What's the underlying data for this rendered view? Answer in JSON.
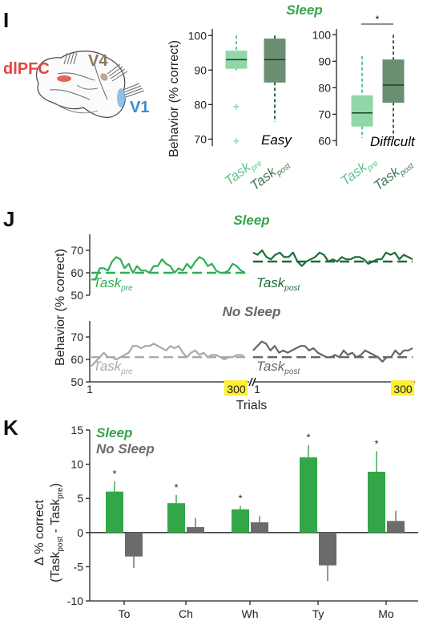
{
  "colors": {
    "sleep_light": "#5cc58a",
    "sleep_dark": "#3e7a52",
    "sleep": "#33a64a",
    "sleep_trace_pre": "#2fae57",
    "sleep_trace_post": "#1d6b3a",
    "nosleep_pre": "#a9a9a9",
    "nosleep_post": "#666666",
    "nosleep_bar": "#6b6b6b",
    "highlight": "#ffee33",
    "dlpfc": "#e0483c",
    "v4": "#8a7560",
    "v1": "#3a8fcc"
  },
  "panel_I": {
    "letter": "I",
    "brain": {
      "dlpfc": "dlPFC",
      "v4": "V4",
      "v1": "V1",
      "icon": "macaque-brain-icon"
    },
    "title": "Sleep",
    "ylabel": "Behavior  (% correct)",
    "star": "*",
    "x_pre": "Task",
    "x_pre_sub": "pre",
    "x_post": "Task",
    "x_post_sub": "post",
    "easy_label": "Easy",
    "difficult_label": "Difficult",
    "easy_ticks": [
      "70",
      "80",
      "90",
      "100"
    ],
    "difficult_ticks": [
      "60",
      "70",
      "80",
      "90",
      "100"
    ]
  },
  "panel_J": {
    "letter": "J",
    "ylabel": "Behavior (% correct)",
    "xlabel": "Trials",
    "sleep_title": "Sleep",
    "nosleep_title": "No Sleep",
    "pre_label": "Task",
    "pre_sub": "pre",
    "post_label": "Task",
    "post_sub": "post",
    "yticks": [
      "50",
      "60",
      "70"
    ],
    "x_start": "1",
    "x_end": "300",
    "x_start2": "1",
    "x_end2": "300"
  },
  "panel_K": {
    "letter": "K",
    "legend_sleep": "Sleep",
    "legend_nosleep": "No Sleep",
    "ylabel_top": "Δ % correct",
    "ylabel_bottom": "(Task",
    "ylabel_post_sub": "post",
    "ylabel_mid": " - Task",
    "ylabel_pre_sub": "pre",
    "ylabel_end": ")",
    "yticks": [
      "-10",
      "-5",
      "0",
      "5",
      "10",
      "15"
    ]
  },
  "chart_data": [
    {
      "type": "box",
      "panel": "I-easy",
      "ylim": [
        68,
        101
      ],
      "categories": [
        "Task pre",
        "Task post"
      ],
      "boxes": [
        {
          "median": 93,
          "q1": 90.5,
          "q3": 95.5,
          "whisker_low": 90,
          "whisker_high": 100,
          "outliers": [
            79.5,
            69.5
          ]
        },
        {
          "median": 93,
          "q1": 86.5,
          "q3": 99,
          "whisker_low": 75,
          "whisker_high": 100,
          "outliers": []
        }
      ],
      "label": "Easy"
    },
    {
      "type": "box",
      "panel": "I-difficult",
      "ylim": [
        58,
        101
      ],
      "categories": [
        "Task pre",
        "Task post"
      ],
      "boxes": [
        {
          "median": 70.5,
          "q1": 65.5,
          "q3": 77,
          "whisker_low": 61,
          "whisker_high": 92,
          "outliers": []
        },
        {
          "median": 81,
          "q1": 74.5,
          "q3": 90.5,
          "whisker_low": 60,
          "whisker_high": 100,
          "outliers": []
        }
      ],
      "significance": "*",
      "label": "Difficult"
    },
    {
      "type": "line",
      "panel": "J-sleep",
      "ylim": [
        50,
        75
      ],
      "series": [
        {
          "name": "Task pre",
          "mean": 60,
          "values": [
            57,
            57,
            62,
            62,
            61,
            65,
            67,
            66,
            62,
            64,
            60,
            63,
            61,
            61,
            60,
            63,
            63,
            66,
            64,
            63,
            60,
            62,
            61,
            64,
            62,
            65,
            67,
            66,
            63,
            64,
            61,
            60,
            60,
            61,
            64,
            63,
            61,
            60
          ]
        },
        {
          "name": "Task post",
          "mean": 65,
          "values": [
            69,
            68,
            70,
            67,
            66,
            68,
            69,
            67,
            67,
            69,
            65,
            63,
            65,
            66,
            67,
            69,
            68,
            65,
            66,
            65,
            67,
            66,
            66,
            67,
            67,
            66,
            64,
            65,
            66,
            66,
            69,
            68,
            69,
            66,
            68,
            67,
            66
          ]
        }
      ]
    },
    {
      "type": "line",
      "panel": "J-nosleep",
      "ylim": [
        50,
        75
      ],
      "series": [
        {
          "name": "Task pre",
          "mean": 61,
          "values": [
            57,
            59,
            61,
            63,
            61,
            61,
            60,
            61,
            62,
            63,
            66,
            66,
            65,
            66,
            66,
            67,
            66,
            65,
            64,
            66,
            65,
            66,
            63,
            61,
            63,
            64,
            62,
            63,
            61,
            62,
            62,
            61,
            60,
            61,
            61,
            62,
            62,
            61
          ]
        },
        {
          "name": "Task post",
          "mean": 61,
          "values": [
            64,
            66,
            68,
            67,
            64,
            66,
            63,
            64,
            63,
            64,
            65,
            66,
            66,
            64,
            65,
            63,
            62,
            61,
            61,
            62,
            61,
            64,
            62,
            63,
            61,
            62,
            64,
            63,
            62,
            61,
            59,
            61,
            61,
            64,
            62,
            64,
            64,
            65
          ]
        }
      ]
    },
    {
      "type": "bar",
      "panel": "K",
      "ylim": [
        -10,
        15
      ],
      "categories": [
        "To",
        "Ch",
        "Wh",
        "Ty",
        "Mo"
      ],
      "series": [
        {
          "name": "Sleep",
          "values": [
            6,
            4.3,
            3.4,
            11,
            8.9
          ],
          "errors": [
            1.5,
            1.2,
            0.5,
            1.8,
            3
          ],
          "significance": [
            "*",
            "*",
            "*",
            "*",
            "*"
          ]
        },
        {
          "name": "No Sleep",
          "values": [
            -3.5,
            0.8,
            1.5,
            -4.8,
            1.7
          ],
          "errors": [
            1.7,
            1.3,
            0.9,
            2.3,
            1.5
          ]
        }
      ]
    }
  ]
}
